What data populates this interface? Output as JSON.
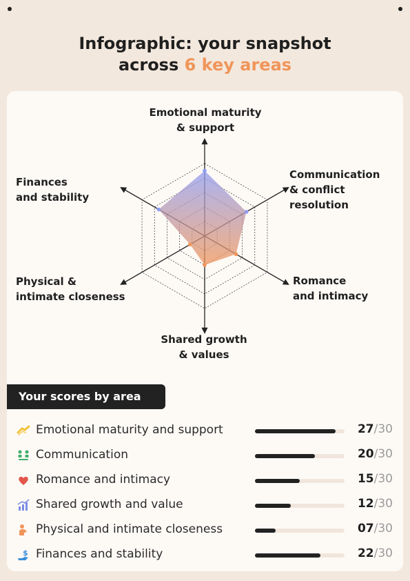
{
  "header": {
    "title_line1": "Infographic: your snapshot",
    "title_line2_prefix": "across ",
    "title_line2_accent": "6 key areas"
  },
  "colors": {
    "accent": "#f0955a",
    "radar_top": "#8f9cf2",
    "radar_bottom": "#f0955a",
    "bar_fill": "#222222",
    "bar_track": "#f1e6dc"
  },
  "chart_data": {
    "type": "radar",
    "max": 30,
    "axes": [
      {
        "label_line1": "Emotional maturity",
        "label_line2": "& support",
        "label_line3": "",
        "value": 27
      },
      {
        "label_line1": "Communication",
        "label_line2": "& conflict",
        "label_line3": "resolution",
        "value": 20
      },
      {
        "label_line1": "Romance",
        "label_line2": "and intimacy",
        "label_line3": "",
        "value": 15
      },
      {
        "label_line1": "Shared growth",
        "label_line2": "& values",
        "label_line3": "",
        "value": 12
      },
      {
        "label_line1": "Physical &",
        "label_line2": "intimate closeness",
        "label_line3": "",
        "value": 7
      },
      {
        "label_line1": "Finances",
        "label_line2": "and stability",
        "label_line3": "",
        "value": 22
      }
    ],
    "grid_rings": 5
  },
  "scores": {
    "section_title": "Your scores by area",
    "items": [
      {
        "label": "Emotional maturity and support",
        "score": "27",
        "max": "/30",
        "value": 27,
        "icon": "handshake-icon",
        "icon_color": "#f0c23a"
      },
      {
        "label": "Communication",
        "score": "20",
        "max": "/30",
        "value": 20,
        "icon": "people-icon",
        "icon_color": "#3fae6a"
      },
      {
        "label": "Romance and intimacy",
        "score": "15",
        "max": "/30",
        "value": 15,
        "icon": "hearts-icon",
        "icon_color": "#e2574c"
      },
      {
        "label": "Shared growth and value",
        "score": "12",
        "max": "/30",
        "value": 12,
        "icon": "growth-chart-icon",
        "icon_color": "#7b8ce8"
      },
      {
        "label": "Physical and intimate closeness",
        "score": "07",
        "max": "/30",
        "value": 7,
        "icon": "hug-icon",
        "icon_color": "#f0955a"
      },
      {
        "label": "Finances and stability",
        "score": "22",
        "max": "/30",
        "value": 22,
        "icon": "money-hand-icon",
        "icon_color": "#3b8fd9"
      }
    ]
  }
}
